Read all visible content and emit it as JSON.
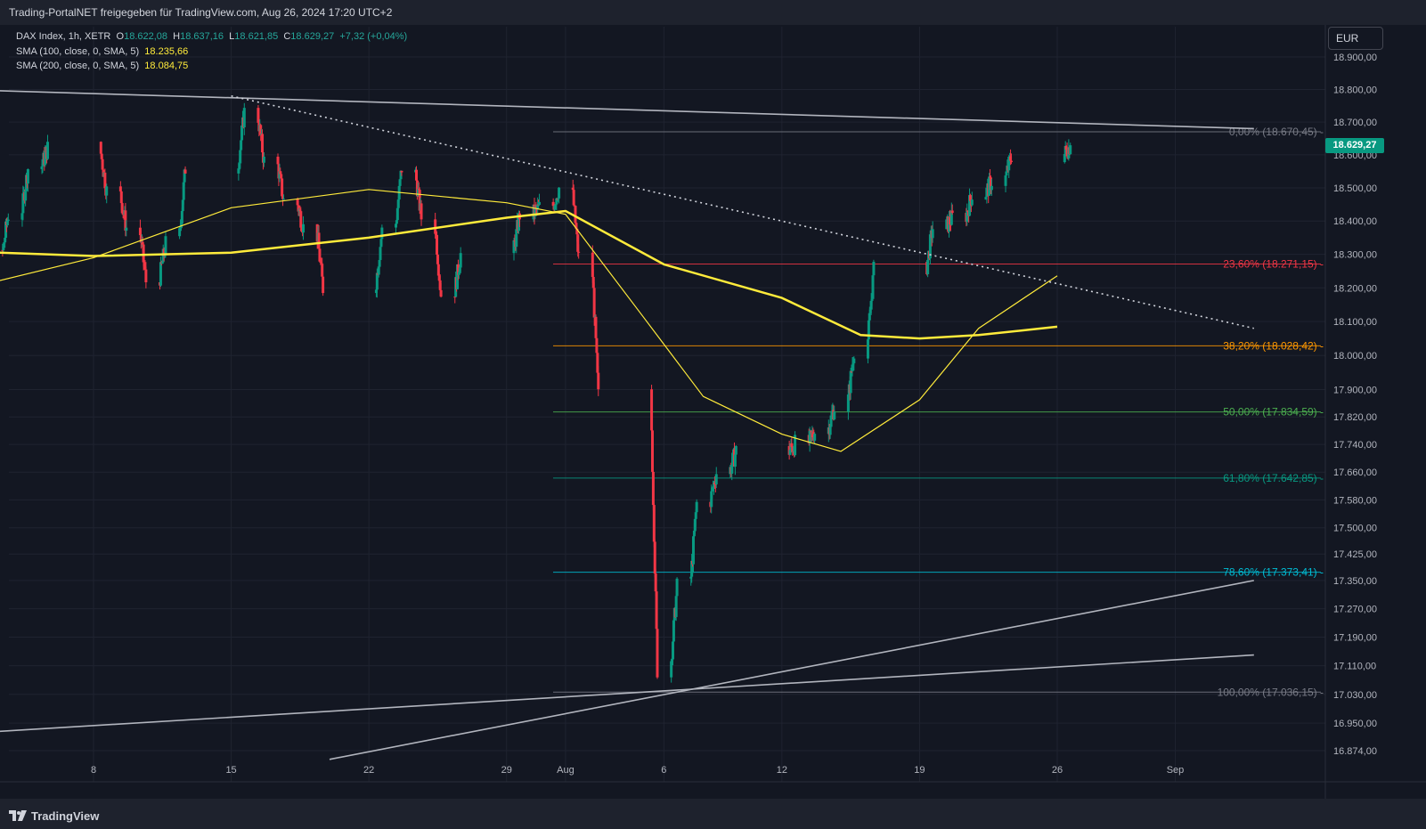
{
  "header": {
    "publisher_line": "Trading-PortalNET freigegeben für TradingView.com, Aug 26, 2024 17:20 UTC+2"
  },
  "legend": {
    "symbol": "DAX Index, 1h, XETR",
    "o_label": "O",
    "o_value": "18.622,08",
    "h_label": "H",
    "h_value": "18.637,16",
    "l_label": "L",
    "l_value": "18.621,85",
    "c_label": "C",
    "c_value": "18.629,27",
    "change": "+7,32 (+0,04%)",
    "sma100_label": "SMA (100, close, 0, SMA, 5)",
    "sma100_value": "18.235,66",
    "sma200_label": "SMA (200, close, 0, SMA, 5)",
    "sma200_value": "18.084,75"
  },
  "toolbar": {
    "currency": "EUR"
  },
  "last_price_tag": "18.629,27",
  "footer": {
    "brand": "TradingView"
  },
  "colors": {
    "background": "#131722",
    "up_candle": "#089981",
    "down_candle": "#f23645",
    "sma_line": "#ffeb3b",
    "grid": "#1f2330",
    "axis_text": "#b2b5be"
  },
  "chart_data": {
    "type": "candlestick",
    "x_axis": {
      "tick_labels": [
        "8",
        "15",
        "22",
        "29",
        "Aug",
        "6",
        "12",
        "19",
        "26",
        "Sep"
      ]
    },
    "y_axis": {
      "scale": "log",
      "range": [
        16840,
        18980
      ],
      "tick_labels": [
        "18.900,00",
        "18.800,00",
        "18.700,00",
        "18.600,00",
        "18.500,00",
        "18.400,00",
        "18.300,00",
        "18.200,00",
        "18.100,00",
        "18.000,00",
        "17.900,00",
        "17.820,00",
        "17.740,00",
        "17.660,00",
        "17.580,00",
        "17.500,00",
        "17.425,00",
        "17.350,00",
        "17.270,00",
        "17.190,00",
        "17.110,00",
        "17.030,00",
        "16.950,00",
        "16.874,00"
      ],
      "tick_values": [
        18900,
        18800,
        18700,
        18600,
        18500,
        18400,
        18300,
        18200,
        18100,
        18000,
        17900,
        17820,
        17740,
        17660,
        17580,
        17500,
        17425,
        17350,
        17270,
        17190,
        17110,
        17030,
        16950,
        16874
      ]
    },
    "price_anchors": [
      [
        "2024-07-01",
        18180
      ],
      [
        "2024-07-02",
        18290
      ],
      [
        "2024-07-03",
        18420
      ],
      [
        "2024-07-04",
        18560
      ],
      [
        "2024-07-05",
        18620
      ],
      [
        "2024-07-08",
        18490
      ],
      [
        "2024-07-09",
        18380
      ],
      [
        "2024-07-10",
        18220
      ],
      [
        "2024-07-11",
        18330
      ],
      [
        "2024-07-12",
        18560
      ],
      [
        "2024-07-15",
        18730
      ],
      [
        "2024-07-16",
        18580
      ],
      [
        "2024-07-17",
        18460
      ],
      [
        "2024-07-18",
        18380
      ],
      [
        "2024-07-19",
        18200
      ],
      [
        "2024-07-22",
        18370
      ],
      [
        "2024-07-23",
        18560
      ],
      [
        "2024-07-24",
        18410
      ],
      [
        "2024-07-25",
        18180
      ],
      [
        "2024-07-26",
        18300
      ],
      [
        "2024-07-29",
        18420
      ],
      [
        "2024-07-30",
        18440
      ],
      [
        "2024-07-31",
        18500
      ],
      [
        "2024-08-01",
        18290
      ],
      [
        "2024-08-02",
        17880
      ],
      [
        "2024-08-05",
        17100
      ],
      [
        "2024-08-06",
        17330
      ],
      [
        "2024-08-07",
        17570
      ],
      [
        "2024-08-08",
        17660
      ],
      [
        "2024-08-09",
        17720
      ],
      [
        "2024-08-12",
        17740
      ],
      [
        "2024-08-13",
        17780
      ],
      [
        "2024-08-14",
        17850
      ],
      [
        "2024-08-15",
        18020
      ],
      [
        "2024-08-16",
        18250
      ],
      [
        "2024-08-19",
        18380
      ],
      [
        "2024-08-20",
        18410
      ],
      [
        "2024-08-21",
        18480
      ],
      [
        "2024-08-22",
        18520
      ],
      [
        "2024-08-23",
        18600
      ],
      [
        "2024-08-26",
        18629.27
      ]
    ],
    "series": [
      {
        "name": "SMA (100, close, 0, SMA, 5)",
        "last_value": 18235.66,
        "points": [
          [
            "2024-07-01",
            18190
          ],
          [
            "2024-07-08",
            18290
          ],
          [
            "2024-07-15",
            18440
          ],
          [
            "2024-07-22",
            18495
          ],
          [
            "2024-07-29",
            18455
          ],
          [
            "2024-08-01",
            18420
          ],
          [
            "2024-08-05",
            18110
          ],
          [
            "2024-08-08",
            17880
          ],
          [
            "2024-08-12",
            17770
          ],
          [
            "2024-08-15",
            17720
          ],
          [
            "2024-08-19",
            17870
          ],
          [
            "2024-08-22",
            18080
          ],
          [
            "2024-08-26",
            18235.66
          ]
        ]
      },
      {
        "name": "SMA (200, close, 0, SMA, 5)",
        "last_value": 18084.75,
        "points": [
          [
            "2024-07-01",
            18310
          ],
          [
            "2024-07-08",
            18295
          ],
          [
            "2024-07-15",
            18305
          ],
          [
            "2024-07-22",
            18350
          ],
          [
            "2024-07-29",
            18410
          ],
          [
            "2024-08-01",
            18430
          ],
          [
            "2024-08-06",
            18270
          ],
          [
            "2024-08-12",
            18170
          ],
          [
            "2024-08-16",
            18060
          ],
          [
            "2024-08-19",
            18050
          ],
          [
            "2024-08-22",
            18060
          ],
          [
            "2024-08-26",
            18084.75
          ]
        ]
      }
    ],
    "fibonacci": [
      {
        "level": "0,00%",
        "value": 18670.45,
        "label": "0,00% (18.670,45)",
        "color": "#787b86"
      },
      {
        "level": "23,60%",
        "value": 18271.15,
        "label": "23,60% (18.271,15)",
        "color": "#f23645"
      },
      {
        "level": "38,20%",
        "value": 18028.42,
        "label": "38,20% (18.028,42)",
        "color": "#ff9800"
      },
      {
        "level": "50,00%",
        "value": 17834.59,
        "label": "50,00% (17.834,59)",
        "color": "#4caf50"
      },
      {
        "level": "61,80%",
        "value": 17642.85,
        "label": "61,80% (17.642,85)",
        "color": "#089981"
      },
      {
        "level": "78,60%",
        "value": 17373.41,
        "label": "78,60% (17.373,41)",
        "color": "#00bcd4"
      },
      {
        "level": "100,00%",
        "value": 17036.15,
        "label": "100,00% (17.036,15)",
        "color": "#787b86"
      }
    ],
    "trendlines": [
      {
        "style": "solid",
        "from": [
          "2024-07-01",
          18800
        ],
        "to": [
          "2024-09-05",
          18680
        ]
      },
      {
        "style": "dotted",
        "from": [
          "2024-07-15",
          18780
        ],
        "to": [
          "2024-09-05",
          18080
        ]
      },
      {
        "style": "solid",
        "from": [
          "2024-07-01",
          16920
        ],
        "to": [
          "2024-09-05",
          17140
        ]
      },
      {
        "style": "solid",
        "from": [
          "2024-07-20",
          16850
        ],
        "to": [
          "2024-09-05",
          17350
        ]
      }
    ]
  }
}
